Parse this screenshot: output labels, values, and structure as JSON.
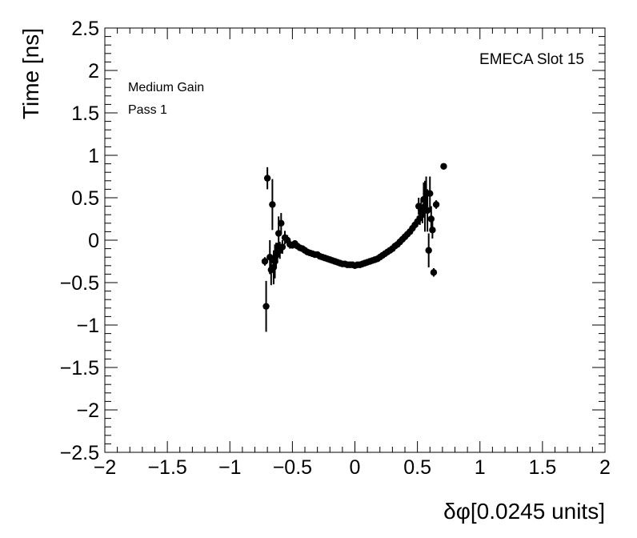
{
  "chart_data": {
    "type": "scatter",
    "title": "",
    "xlabel": "δφ[0.0245 units]",
    "ylabel": "Time [ns]",
    "xlim": [
      -2,
      2
    ],
    "ylim": [
      -2.5,
      2.5
    ],
    "grid": false,
    "legend": "none",
    "xticks": [
      -2,
      -1.5,
      -1,
      -0.5,
      0,
      0.5,
      1,
      1.5,
      2
    ],
    "xtick_labels": [
      "−2",
      "−1.5",
      "−1",
      "−0.5",
      "0",
      "0.5",
      "1",
      "1.5",
      "2"
    ],
    "yticks": [
      2.5,
      2,
      1.5,
      1,
      0.5,
      0,
      -0.5,
      -1,
      -1.5,
      -2,
      -2.5
    ],
    "ytick_labels": [
      "2.5",
      "2",
      "1.5",
      "1",
      "0.5",
      "0",
      "−0.5",
      "−1",
      "−1.5",
      "−2",
      "−2.5"
    ],
    "annotations": {
      "top_right": "EMECA Slot 15",
      "line1": "Medium Gain",
      "line2": "Pass 1"
    },
    "marker_color": "#000000",
    "points": [
      {
        "x": -0.72,
        "y": -0.25,
        "err": 0.05
      },
      {
        "x": -0.71,
        "y": -0.78,
        "err": 0.3
      },
      {
        "x": -0.7,
        "y": 0.73,
        "err": 0.13
      },
      {
        "x": -0.68,
        "y": -0.2,
        "err": 0.2
      },
      {
        "x": -0.67,
        "y": -0.35,
        "err": 0.18
      },
      {
        "x": -0.66,
        "y": 0.42,
        "err": 0.3
      },
      {
        "x": -0.65,
        "y": -0.32,
        "err": 0.2
      },
      {
        "x": -0.64,
        "y": -0.25,
        "err": 0.2
      },
      {
        "x": -0.63,
        "y": -0.18,
        "err": 0.15
      },
      {
        "x": -0.62,
        "y": -0.15,
        "err": 0.12
      },
      {
        "x": -0.61,
        "y": 0.08,
        "err": 0.2
      },
      {
        "x": -0.6,
        "y": -0.12,
        "err": 0.1
      },
      {
        "x": -0.59,
        "y": 0.2,
        "err": 0.12
      },
      {
        "x": -0.58,
        "y": -0.08,
        "err": 0.08
      },
      {
        "x": -0.56,
        "y": 0.03,
        "err": 0.08
      },
      {
        "x": -0.54,
        "y": 0.0,
        "err": 0.06
      },
      {
        "x": -0.52,
        "y": -0.05,
        "err": 0.05
      },
      {
        "x": -0.5,
        "y": -0.06,
        "err": 0.04
      },
      {
        "x": -0.48,
        "y": -0.04,
        "err": 0.04
      },
      {
        "x": -0.46,
        "y": -0.07,
        "err": 0.03
      },
      {
        "x": -0.44,
        "y": -0.09,
        "err": 0.03
      },
      {
        "x": -0.42,
        "y": -0.1,
        "err": 0.03
      },
      {
        "x": -0.4,
        "y": -0.12,
        "err": 0.03
      },
      {
        "x": -0.38,
        "y": -0.14,
        "err": 0.02
      },
      {
        "x": -0.36,
        "y": -0.15,
        "err": 0.02
      },
      {
        "x": -0.34,
        "y": -0.16,
        "err": 0.02
      },
      {
        "x": -0.32,
        "y": -0.17,
        "err": 0.02
      },
      {
        "x": -0.3,
        "y": -0.17,
        "err": 0.02
      },
      {
        "x": -0.28,
        "y": -0.19,
        "err": 0.02
      },
      {
        "x": -0.26,
        "y": -0.2,
        "err": 0.02
      },
      {
        "x": -0.24,
        "y": -0.21,
        "err": 0.02
      },
      {
        "x": -0.22,
        "y": -0.22,
        "err": 0.02
      },
      {
        "x": -0.2,
        "y": -0.23,
        "err": 0.02
      },
      {
        "x": -0.18,
        "y": -0.24,
        "err": 0.02
      },
      {
        "x": -0.16,
        "y": -0.25,
        "err": 0.02
      },
      {
        "x": -0.14,
        "y": -0.26,
        "err": 0.02
      },
      {
        "x": -0.12,
        "y": -0.27,
        "err": 0.02
      },
      {
        "x": -0.1,
        "y": -0.28,
        "err": 0.02
      },
      {
        "x": -0.08,
        "y": -0.28,
        "err": 0.02
      },
      {
        "x": -0.06,
        "y": -0.29,
        "err": 0.02
      },
      {
        "x": -0.04,
        "y": -0.29,
        "err": 0.02
      },
      {
        "x": -0.02,
        "y": -0.29,
        "err": 0.02
      },
      {
        "x": 0.0,
        "y": -0.3,
        "err": 0.02
      },
      {
        "x": 0.02,
        "y": -0.29,
        "err": 0.02
      },
      {
        "x": 0.04,
        "y": -0.29,
        "err": 0.02
      },
      {
        "x": 0.06,
        "y": -0.28,
        "err": 0.02
      },
      {
        "x": 0.08,
        "y": -0.27,
        "err": 0.02
      },
      {
        "x": 0.1,
        "y": -0.26,
        "err": 0.02
      },
      {
        "x": 0.12,
        "y": -0.25,
        "err": 0.02
      },
      {
        "x": 0.14,
        "y": -0.24,
        "err": 0.02
      },
      {
        "x": 0.16,
        "y": -0.23,
        "err": 0.02
      },
      {
        "x": 0.18,
        "y": -0.22,
        "err": 0.02
      },
      {
        "x": 0.2,
        "y": -0.2,
        "err": 0.02
      },
      {
        "x": 0.22,
        "y": -0.18,
        "err": 0.02
      },
      {
        "x": 0.24,
        "y": -0.16,
        "err": 0.02
      },
      {
        "x": 0.26,
        "y": -0.14,
        "err": 0.02
      },
      {
        "x": 0.28,
        "y": -0.12,
        "err": 0.02
      },
      {
        "x": 0.3,
        "y": -0.1,
        "err": 0.02
      },
      {
        "x": 0.32,
        "y": -0.07,
        "err": 0.02
      },
      {
        "x": 0.34,
        "y": -0.05,
        "err": 0.02
      },
      {
        "x": 0.36,
        "y": -0.02,
        "err": 0.02
      },
      {
        "x": 0.38,
        "y": 0.01,
        "err": 0.03
      },
      {
        "x": 0.4,
        "y": 0.04,
        "err": 0.03
      },
      {
        "x": 0.42,
        "y": 0.07,
        "err": 0.03
      },
      {
        "x": 0.44,
        "y": 0.1,
        "err": 0.03
      },
      {
        "x": 0.46,
        "y": 0.14,
        "err": 0.04
      },
      {
        "x": 0.48,
        "y": 0.18,
        "err": 0.05
      },
      {
        "x": 0.5,
        "y": 0.22,
        "err": 0.06
      },
      {
        "x": 0.51,
        "y": 0.4,
        "err": 0.1
      },
      {
        "x": 0.52,
        "y": 0.26,
        "err": 0.08
      },
      {
        "x": 0.53,
        "y": 0.35,
        "err": 0.12
      },
      {
        "x": 0.54,
        "y": 0.3,
        "err": 0.1
      },
      {
        "x": 0.55,
        "y": 0.48,
        "err": 0.2
      },
      {
        "x": 0.56,
        "y": 0.4,
        "err": 0.3
      },
      {
        "x": 0.57,
        "y": 0.55,
        "err": 0.2
      },
      {
        "x": 0.58,
        "y": 0.35,
        "err": 0.25
      },
      {
        "x": 0.59,
        "y": -0.12,
        "err": 0.2
      },
      {
        "x": 0.6,
        "y": 0.55,
        "err": 0.2
      },
      {
        "x": 0.61,
        "y": 0.25,
        "err": 0.15
      },
      {
        "x": 0.62,
        "y": 0.12,
        "err": 0.1
      },
      {
        "x": 0.63,
        "y": -0.38,
        "err": 0.05
      },
      {
        "x": 0.65,
        "y": 0.42,
        "err": 0.05
      },
      {
        "x": 0.71,
        "y": 0.87,
        "err": 0.03
      }
    ]
  }
}
